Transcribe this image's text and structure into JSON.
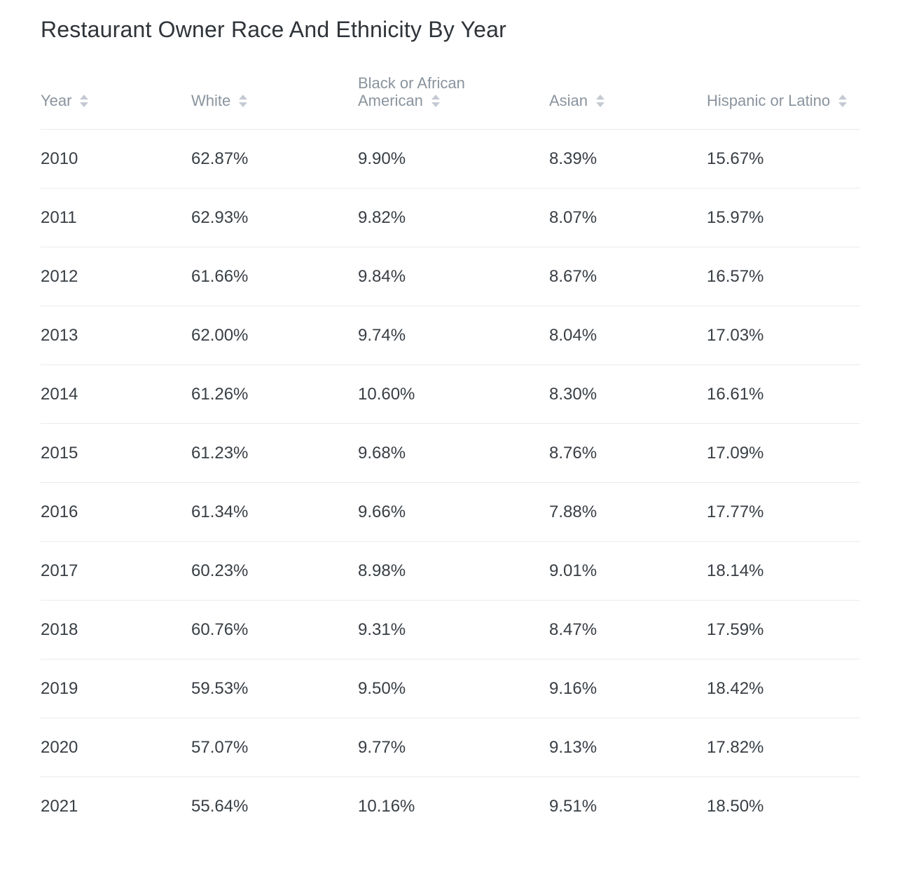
{
  "title": "Restaurant Owner Race And Ethnicity By Year",
  "table": {
    "headers": [
      {
        "label": "Year",
        "sort_icon": "sort-icon"
      },
      {
        "label": "White",
        "sort_icon": "sort-icon"
      },
      {
        "label": "Black or African American",
        "sort_icon": "sort-icon"
      },
      {
        "label": "Asian",
        "sort_icon": "sort-icon"
      },
      {
        "label": "Hispanic or Latino",
        "sort_icon": "sort-icon"
      }
    ],
    "rows": [
      [
        "2010",
        "62.87%",
        "9.90%",
        "8.39%",
        "15.67%"
      ],
      [
        "2011",
        "62.93%",
        "9.82%",
        "8.07%",
        "15.97%"
      ],
      [
        "2012",
        "61.66%",
        "9.84%",
        "8.67%",
        "16.57%"
      ],
      [
        "2013",
        "62.00%",
        "9.74%",
        "8.04%",
        "17.03%"
      ],
      [
        "2014",
        "61.26%",
        "10.60%",
        "8.30%",
        "16.61%"
      ],
      [
        "2015",
        "61.23%",
        "9.68%",
        "8.76%",
        "17.09%"
      ],
      [
        "2016",
        "61.34%",
        "9.66%",
        "7.88%",
        "17.77%"
      ],
      [
        "2017",
        "60.23%",
        "8.98%",
        "9.01%",
        "18.14%"
      ],
      [
        "2018",
        "60.76%",
        "9.31%",
        "8.47%",
        "17.59%"
      ],
      [
        "2019",
        "59.53%",
        "9.50%",
        "9.16%",
        "18.42%"
      ],
      [
        "2020",
        "57.07%",
        "9.77%",
        "9.13%",
        "17.82%"
      ],
      [
        "2021",
        "55.64%",
        "10.16%",
        "9.51%",
        "18.50%"
      ]
    ]
  },
  "colors": {
    "title": "#2f3439",
    "header_text": "#8a949e",
    "cell_text": "#383e44",
    "divider": "#e9ebee",
    "sort_icon": "#c3cad2"
  }
}
